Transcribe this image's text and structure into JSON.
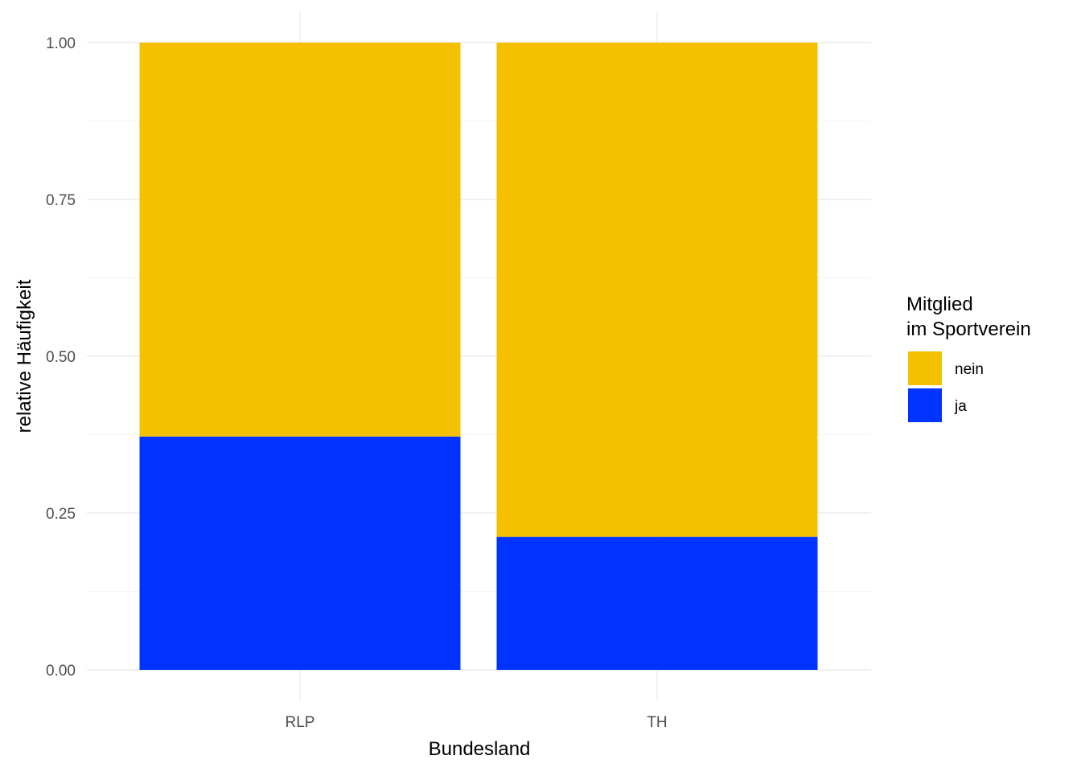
{
  "chart_data": {
    "type": "bar",
    "stacked": true,
    "categories": [
      "RLP",
      "TH"
    ],
    "series": [
      {
        "name": "ja",
        "values": [
          0.372,
          0.212
        ],
        "color": "#0033FF"
      },
      {
        "name": "nein",
        "values": [
          0.628,
          0.788
        ],
        "color": "#F4C000"
      }
    ],
    "xlabel": "Bundesland",
    "ylabel": "relative Häufigkeit",
    "ylim": [
      0,
      1
    ],
    "yticks": [
      "0.00",
      "0.25",
      "0.50",
      "0.75",
      "1.00"
    ],
    "ytick_values": [
      0,
      0.25,
      0.5,
      0.75,
      1
    ],
    "grid": true,
    "legend": {
      "title_lines": [
        "Mitglied",
        "im Sportverein"
      ],
      "position": "right",
      "entries": [
        "nein",
        "ja"
      ]
    }
  }
}
